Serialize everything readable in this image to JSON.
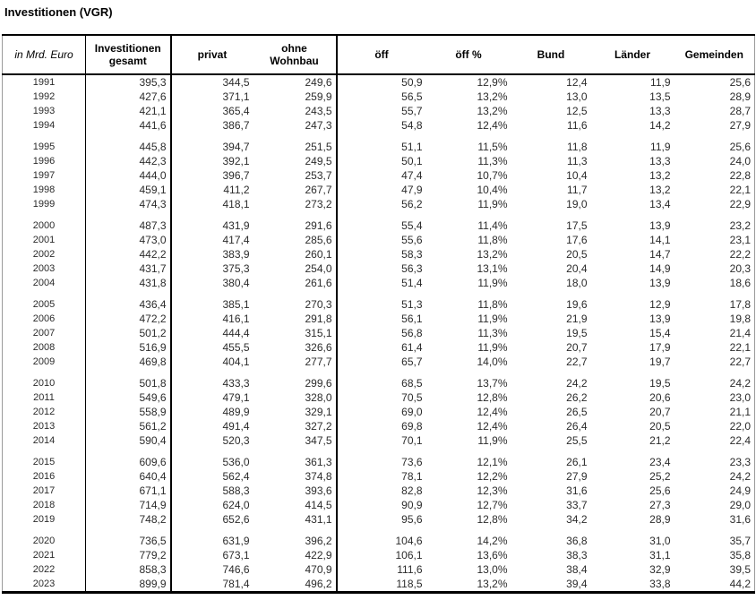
{
  "title": "Investitionen (VGR)",
  "table": {
    "unit_label": "in Mrd. Euro",
    "columns": [
      "Investitionen\ngesamt",
      "privat",
      "ohne\nWohnbau",
      "öff",
      "öff %",
      "Bund",
      "Länder",
      "Gemeinden"
    ],
    "row_groups": [
      {
        "rows": [
          [
            "1991",
            "395,3",
            "344,5",
            "249,6",
            "50,9",
            "12,9%",
            "12,4",
            "11,9",
            "25,6"
          ],
          [
            "1992",
            "427,6",
            "371,1",
            "259,9",
            "56,5",
            "13,2%",
            "13,0",
            "13,5",
            "28,9"
          ],
          [
            "1993",
            "421,1",
            "365,4",
            "243,5",
            "55,7",
            "13,2%",
            "12,5",
            "13,3",
            "28,7"
          ],
          [
            "1994",
            "441,6",
            "386,7",
            "247,3",
            "54,8",
            "12,4%",
            "11,6",
            "14,2",
            "27,9"
          ]
        ]
      },
      {
        "rows": [
          [
            "1995",
            "445,8",
            "394,7",
            "251,5",
            "51,1",
            "11,5%",
            "11,8",
            "11,9",
            "25,6"
          ],
          [
            "1996",
            "442,3",
            "392,1",
            "249,5",
            "50,1",
            "11,3%",
            "11,3",
            "13,3",
            "24,0"
          ],
          [
            "1997",
            "444,0",
            "396,7",
            "253,7",
            "47,4",
            "10,7%",
            "10,4",
            "13,2",
            "22,8"
          ],
          [
            "1998",
            "459,1",
            "411,2",
            "267,7",
            "47,9",
            "10,4%",
            "11,7",
            "13,2",
            "22,1"
          ],
          [
            "1999",
            "474,3",
            "418,1",
            "273,2",
            "56,2",
            "11,9%",
            "19,0",
            "13,4",
            "22,9"
          ]
        ]
      },
      {
        "rows": [
          [
            "2000",
            "487,3",
            "431,9",
            "291,6",
            "55,4",
            "11,4%",
            "17,5",
            "13,9",
            "23,2"
          ],
          [
            "2001",
            "473,0",
            "417,4",
            "285,6",
            "55,6",
            "11,8%",
            "17,6",
            "14,1",
            "23,1"
          ],
          [
            "2002",
            "442,2",
            "383,9",
            "260,1",
            "58,3",
            "13,2%",
            "20,5",
            "14,7",
            "22,2"
          ],
          [
            "2003",
            "431,7",
            "375,3",
            "254,0",
            "56,3",
            "13,1%",
            "20,4",
            "14,9",
            "20,3"
          ],
          [
            "2004",
            "431,8",
            "380,4",
            "261,6",
            "51,4",
            "11,9%",
            "18,0",
            "13,9",
            "18,6"
          ]
        ]
      },
      {
        "rows": [
          [
            "2005",
            "436,4",
            "385,1",
            "270,3",
            "51,3",
            "11,8%",
            "19,6",
            "12,9",
            "17,8"
          ],
          [
            "2006",
            "472,2",
            "416,1",
            "291,8",
            "56,1",
            "11,9%",
            "21,9",
            "13,9",
            "19,8"
          ],
          [
            "2007",
            "501,2",
            "444,4",
            "315,1",
            "56,8",
            "11,3%",
            "19,5",
            "15,4",
            "21,4"
          ],
          [
            "2008",
            "516,9",
            "455,5",
            "326,6",
            "61,4",
            "11,9%",
            "20,7",
            "17,9",
            "22,1"
          ],
          [
            "2009",
            "469,8",
            "404,1",
            "277,7",
            "65,7",
            "14,0%",
            "22,7",
            "19,7",
            "22,7"
          ]
        ]
      },
      {
        "rows": [
          [
            "2010",
            "501,8",
            "433,3",
            "299,6",
            "68,5",
            "13,7%",
            "24,2",
            "19,5",
            "24,2"
          ],
          [
            "2011",
            "549,6",
            "479,1",
            "328,0",
            "70,5",
            "12,8%",
            "26,2",
            "20,6",
            "23,0"
          ],
          [
            "2012",
            "558,9",
            "489,9",
            "329,1",
            "69,0",
            "12,4%",
            "26,5",
            "20,7",
            "21,1"
          ],
          [
            "2013",
            "561,2",
            "491,4",
            "327,2",
            "69,8",
            "12,4%",
            "26,4",
            "20,5",
            "22,0"
          ],
          [
            "2014",
            "590,4",
            "520,3",
            "347,5",
            "70,1",
            "11,9%",
            "25,5",
            "21,2",
            "22,4"
          ]
        ]
      },
      {
        "rows": [
          [
            "2015",
            "609,6",
            "536,0",
            "361,3",
            "73,6",
            "12,1%",
            "26,1",
            "23,4",
            "23,3"
          ],
          [
            "2016",
            "640,4",
            "562,4",
            "374,8",
            "78,1",
            "12,2%",
            "27,9",
            "25,2",
            "24,2"
          ],
          [
            "2017",
            "671,1",
            "588,3",
            "393,6",
            "82,8",
            "12,3%",
            "31,6",
            "25,6",
            "24,9"
          ],
          [
            "2018",
            "714,9",
            "624,0",
            "414,5",
            "90,9",
            "12,7%",
            "33,7",
            "27,3",
            "29,0"
          ],
          [
            "2019",
            "748,2",
            "652,6",
            "431,1",
            "95,6",
            "12,8%",
            "34,2",
            "28,9",
            "31,6"
          ]
        ]
      },
      {
        "rows": [
          [
            "2020",
            "736,5",
            "631,9",
            "396,2",
            "104,6",
            "14,2%",
            "36,8",
            "31,0",
            "35,7"
          ],
          [
            "2021",
            "779,2",
            "673,1",
            "422,9",
            "106,1",
            "13,6%",
            "38,3",
            "31,1",
            "35,8"
          ],
          [
            "2022",
            "858,3",
            "746,6",
            "470,9",
            "111,6",
            "13,0%",
            "38,4",
            "32,9",
            "39,5"
          ],
          [
            "2023",
            "899,9",
            "781,4",
            "496,2",
            "118,5",
            "13,2%",
            "39,4",
            "33,8",
            "44,2"
          ]
        ]
      }
    ]
  }
}
